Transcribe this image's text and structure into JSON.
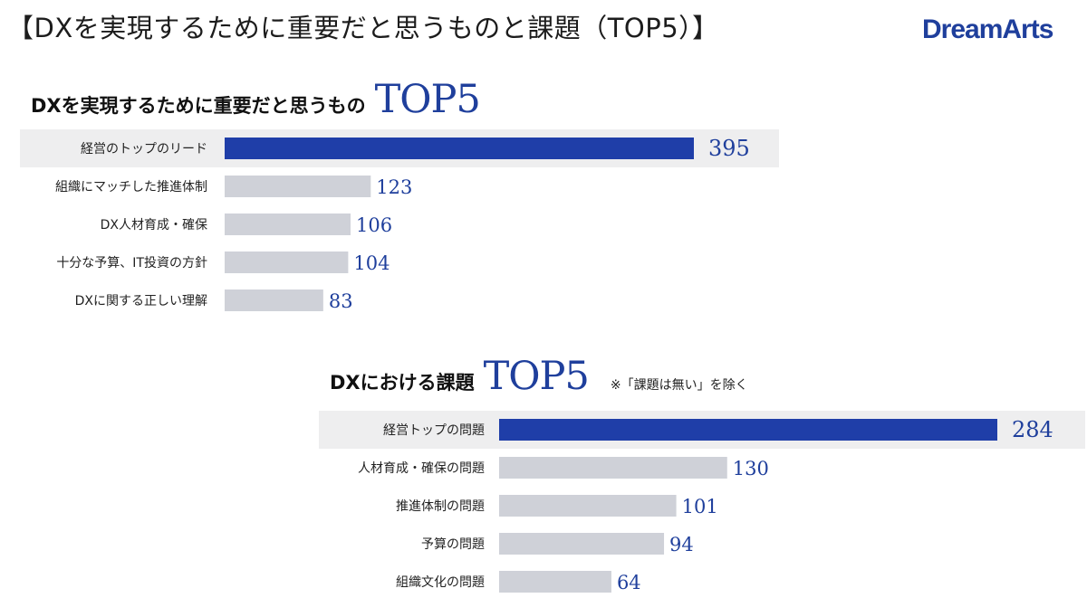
{
  "header": {
    "title": "【DXを実現するために重要だと思うものと課題（TOP5）】",
    "logo": "DreamArts"
  },
  "colors": {
    "highlight_bar": "#1f3ea8",
    "bar": "#cfd1d8",
    "highlight_bg": "#eeeeef",
    "value_text": "#1f3f9c"
  },
  "chart_data": [
    {
      "type": "bar",
      "title_prefix": "DXを実現するために重要だと思うもの",
      "title_top": "TOP5",
      "categories": [
        "経営のトップのリード",
        "組織にマッチした推進体制",
        "DX人材育成・確保",
        "十分な予算、IT投資の方針",
        "DXに関する正しい理解"
      ],
      "values": [
        395,
        123,
        106,
        104,
        83
      ],
      "highlight_index": 0
    },
    {
      "type": "bar",
      "title_prefix": "DXにおける課題",
      "title_top": "TOP5",
      "note": "※「課題は無い」を除く",
      "categories": [
        "経営トップの問題",
        "人材育成・確保の問題",
        "推進体制の問題",
        "予算の問題",
        "組織文化の問題"
      ],
      "values": [
        284,
        130,
        101,
        94,
        64
      ],
      "highlight_index": 0
    }
  ]
}
